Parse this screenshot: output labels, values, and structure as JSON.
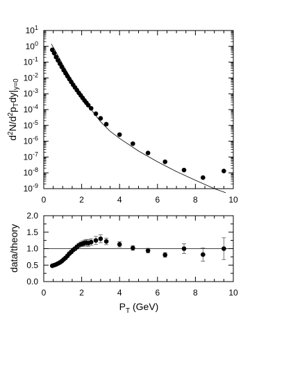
{
  "chart_data": [
    {
      "type": "scatter",
      "yscale": "log",
      "ylabel_parts": {
        "base": "d",
        "sup": "2",
        "mid": "N/d",
        "sup2": "2",
        "mid2": "p",
        "sub": "T",
        "end": "dy|",
        "sub2": "y=0"
      },
      "xlim": [
        0,
        10
      ],
      "ylim": [
        1e-09,
        10
      ],
      "x_ticks": [
        "0",
        "2",
        "4",
        "6",
        "8",
        "10"
      ],
      "y_ticks": [
        "10^-9",
        "10^-8",
        "10^-7",
        "10^-6",
        "10^-5",
        "10^-4",
        "10^-3",
        "10^-2",
        "10^-1",
        "10^0",
        "10^1"
      ],
      "series": [
        {
          "marker": "filled-circle",
          "x": [
            0.45,
            0.55,
            0.65,
            0.75,
            0.85,
            0.95,
            1.05,
            1.15,
            1.25,
            1.35,
            1.45,
            1.55,
            1.65,
            1.75,
            1.85,
            1.95,
            2.05,
            2.15,
            2.25,
            2.35,
            2.5,
            2.75,
            3.0,
            3.3,
            4.0,
            4.7,
            5.5,
            6.4,
            7.4,
            8.4,
            9.5
          ],
          "y": [
            0.6,
            0.37,
            0.21,
            0.13,
            0.08,
            0.05,
            0.031,
            0.02,
            0.013,
            0.0085,
            0.0056,
            0.0037,
            0.0025,
            0.0017,
            0.00115,
            0.0008,
            0.00055,
            0.00038,
            0.00027,
            0.00019,
            0.00012,
            5.5e-05,
            2.8e-05,
            1.2e-05,
            2.6e-06,
            7e-07,
            1.8e-07,
            5e-08,
            1.5e-08,
            5e-09,
            1.3e-08
          ]
        }
      ],
      "fit_curve": {
        "style": "thin-line",
        "x": [
          0.4,
          0.6,
          0.8,
          1.0,
          1.25,
          1.5,
          1.75,
          2.0,
          2.5,
          3.0,
          3.5,
          4.0,
          5.0,
          6.0,
          7.0,
          8.0,
          9.0,
          9.6
        ],
        "y": [
          1.4,
          0.55,
          0.2,
          0.072,
          0.022,
          0.0068,
          0.0022,
          0.00075,
          0.0001,
          1.7e-05,
          4.3e-06,
          1.5e-06,
          2.4e-07,
          5e-08,
          1.2e-08,
          3.4e-09,
          1e-09,
          5.5e-10
        ]
      }
    },
    {
      "type": "scatter",
      "ylabel": "data/theory",
      "xlabel_parts": {
        "base": "P",
        "sub": "T",
        "end": " (GeV)"
      },
      "xlim": [
        0,
        10
      ],
      "ylim": [
        0,
        2
      ],
      "x_ticks": [
        "0",
        "2",
        "4",
        "6",
        "8",
        "10"
      ],
      "y_ticks": [
        "0.0",
        "0.5",
        "1.0",
        "1.5",
        "2.0"
      ],
      "reference_line": 1.0,
      "series": [
        {
          "marker": "filled-circle",
          "x": [
            0.45,
            0.55,
            0.65,
            0.75,
            0.85,
            0.95,
            1.05,
            1.15,
            1.25,
            1.35,
            1.45,
            1.55,
            1.65,
            1.75,
            1.85,
            1.95,
            2.05,
            2.15,
            2.25,
            2.35,
            2.5,
            2.75,
            3.0,
            3.3,
            4.0,
            4.7,
            5.5,
            6.4,
            7.4,
            8.4,
            9.5
          ],
          "y": [
            0.48,
            0.5,
            0.52,
            0.55,
            0.58,
            0.62,
            0.67,
            0.72,
            0.78,
            0.85,
            0.9,
            0.96,
            1.0,
            1.05,
            1.1,
            1.13,
            1.15,
            1.17,
            1.18,
            1.17,
            1.2,
            1.25,
            1.3,
            1.22,
            1.13,
            1.02,
            0.94,
            0.81,
            1.0,
            0.82,
            1.0
          ],
          "yerr": [
            0.02,
            0.02,
            0.02,
            0.02,
            0.03,
            0.03,
            0.03,
            0.03,
            0.04,
            0.04,
            0.05,
            0.05,
            0.05,
            0.06,
            0.06,
            0.07,
            0.08,
            0.09,
            0.1,
            0.1,
            0.1,
            0.12,
            0.12,
            0.1,
            0.08,
            0.07,
            0.07,
            0.07,
            0.15,
            0.2,
            0.33
          ]
        }
      ]
    }
  ]
}
